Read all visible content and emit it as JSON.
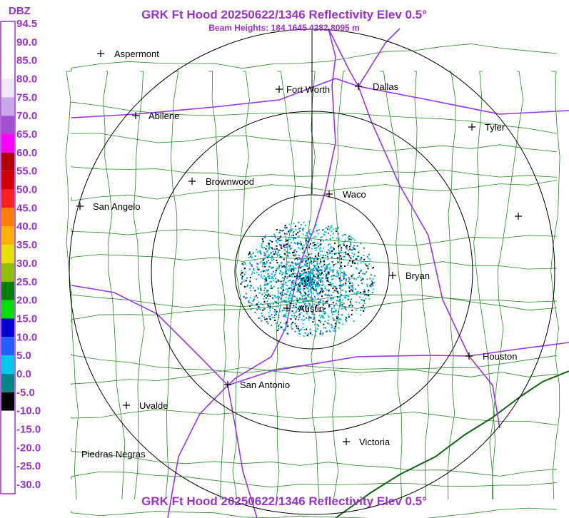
{
  "header": {
    "title": "GRK Ft Hood 20250622/1346 Reflectivity Elev 0.5°",
    "subtitle": "Beam Heights: 184 1645 4282 8095 m"
  },
  "legend": {
    "unit": "DBZ",
    "labels": [
      "94.5",
      "90.0",
      "85.0",
      "80.0",
      "75.0",
      "70.0",
      "65.0",
      "60.0",
      "55.0",
      "50.0",
      "45.0",
      "40.0",
      "35.0",
      "30.0",
      "25.0",
      "20.0",
      "15.0",
      "10.0",
      "5.0",
      "0.0",
      "-5.0",
      "-10.0",
      "-15.0",
      "-20.0",
      "-25.0",
      "-30.0"
    ],
    "colors": [
      "#ffffff",
      "#ffffff",
      "#ffffff",
      "#f0e8f8",
      "#c8a8e8",
      "#a050d0",
      "#ff00ff",
      "#b00000",
      "#d00000",
      "#ff2020",
      "#ff8000",
      "#ffb000",
      "#e8e000",
      "#90c000",
      "#008000",
      "#00e000",
      "#0000d0",
      "#2060ff",
      "#00c8e8",
      "#008888",
      "#000000",
      "#ffffff",
      "#ffffff",
      "#ffffff",
      "#ffffff"
    ]
  },
  "cities": [
    {
      "name": "Aspermont"
    },
    {
      "name": "Fort Worth"
    },
    {
      "name": "Dallas"
    },
    {
      "name": "Abilene"
    },
    {
      "name": "Tyler"
    },
    {
      "name": "Brownwood"
    },
    {
      "name": "Waco"
    },
    {
      "name": "San Angelo"
    },
    {
      "name": "Bryan"
    },
    {
      "name": "Austin"
    },
    {
      "name": "Houston"
    },
    {
      "name": "San Antonio"
    },
    {
      "name": "Uvalde"
    },
    {
      "name": "Victoria"
    },
    {
      "name": "Piedras Negras"
    }
  ]
}
